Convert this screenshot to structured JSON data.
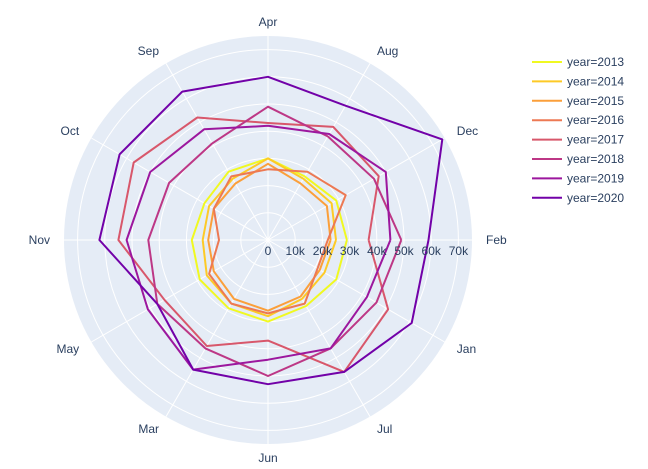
{
  "chart_data": {
    "type": "polar-line",
    "title": "",
    "angular_categories": [
      "Feb",
      "Dec",
      "Aug",
      "Apr",
      "Sep",
      "Oct",
      "Nov",
      "May",
      "Mar",
      "Jun",
      "Jul",
      "Jan"
    ],
    "radial_range": [
      0,
      75000
    ],
    "radial_ticks": [
      0,
      10000,
      20000,
      30000,
      40000,
      50000,
      60000,
      70000
    ],
    "radial_tick_labels": [
      "0",
      "10k",
      "20k",
      "30k",
      "40k",
      "50k",
      "60k",
      "70k"
    ],
    "grid": true,
    "legend_position": "top-right",
    "series": [
      {
        "name": "year=2013",
        "color": "#f0f921",
        "values": [
          29000,
          29000,
          27000,
          30000,
          29000,
          27000,
          28000,
          29000,
          29000,
          30000,
          28000,
          29000
        ]
      },
      {
        "name": "year=2014",
        "color": "#fdca26",
        "values": [
          25000,
          27000,
          26000,
          30000,
          26000,
          25000,
          24000,
          26000,
          27000,
          28000,
          25000,
          24000
        ]
      },
      {
        "name": "year=2015",
        "color": "#fb9f3a",
        "values": [
          23000,
          25000,
          24000,
          28000,
          24000,
          23000,
          22000,
          23000,
          25000,
          26000,
          24000,
          22000
        ]
      },
      {
        "name": "year=2016",
        "color": "#ed7953",
        "values": [
          22000,
          33000,
          29000,
          26000,
          27000,
          23000,
          18000,
          25000,
          27000,
          27000,
          27000,
          21000
        ]
      },
      {
        "name": "year=2017",
        "color": "#d8576b",
        "values": [
          37000,
          47000,
          48000,
          43000,
          52000,
          57000,
          55000,
          44000,
          45000,
          37000,
          56000,
          51000
        ]
      },
      {
        "name": "year=2018",
        "color": "#bd3786",
        "values": [
          49000,
          45000,
          44000,
          49000,
          41000,
          42000,
          44000,
          47000,
          46000,
          50000,
          46000,
          46000
        ]
      },
      {
        "name": "year=2019",
        "color": "#9c179e",
        "values": [
          45000,
          50000,
          45000,
          42000,
          47000,
          50000,
          52000,
          51000,
          55000,
          44000,
          46000,
          42000
        ]
      },
      {
        "name": "year=2020",
        "color": "#7201a8",
        "values": [
          59000,
          74000,
          57000,
          60000,
          63000,
          63000,
          62000,
          47000,
          55000,
          53000,
          56000,
          61000
        ]
      }
    ]
  }
}
